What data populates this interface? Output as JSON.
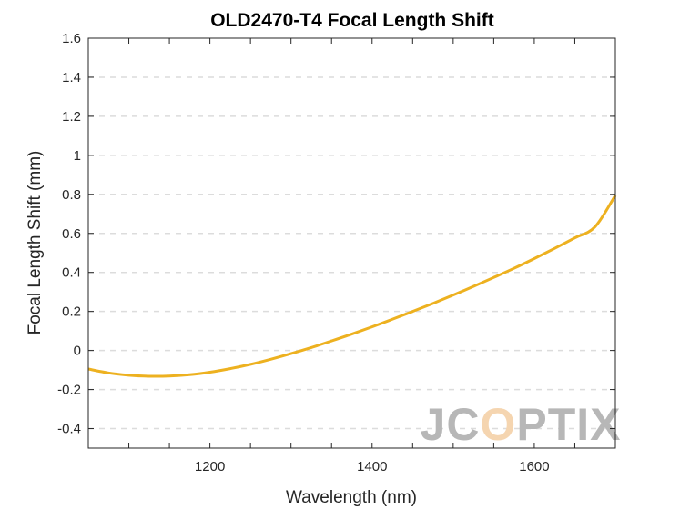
{
  "chart_data": {
    "type": "line",
    "title": "OLD2470-T4 Focal Length Shift",
    "xlabel": "Wavelength (nm)",
    "ylabel": "Focal Length Shift (mm)",
    "xlim": [
      1050,
      1700
    ],
    "ylim": [
      -0.5,
      1.6
    ],
    "xticks": [
      1200,
      1400,
      1600
    ],
    "xtick_labels": [
      "1200",
      "1400",
      "1600"
    ],
    "yticks": [
      -0.4,
      -0.2,
      0,
      0.2,
      0.4,
      0.6,
      0.8,
      1,
      1.2,
      1.4,
      1.6
    ],
    "ytick_labels": [
      "-0.4",
      "-0.2",
      "0",
      "0.2",
      "0.4",
      "0.6",
      "0.8",
      "1",
      "1.2",
      "1.4",
      "1.6"
    ],
    "grid": "horizontal-dashed",
    "line_color": "#EDB120",
    "series": [
      {
        "x": [
          1050,
          1075,
          1100,
          1125,
          1150,
          1175,
          1200,
          1225,
          1250,
          1275,
          1300,
          1325,
          1350,
          1375,
          1400,
          1425,
          1450,
          1475,
          1500,
          1525,
          1550,
          1575,
          1600,
          1625,
          1650,
          1675,
          1700
        ],
        "y": [
          -0.095,
          -0.115,
          -0.127,
          -0.132,
          -0.131,
          -0.124,
          -0.111,
          -0.093,
          -0.071,
          -0.045,
          -0.016,
          0.015,
          0.049,
          0.084,
          0.121,
          0.16,
          0.2,
          0.241,
          0.284,
          0.328,
          0.374,
          0.421,
          0.471,
          0.523,
          0.577,
          0.634,
          0.795
        ]
      }
    ]
  },
  "watermark": {
    "text": "JCOPTIX",
    "colors": [
      "#b7b7b7",
      "#f5d5b0"
    ]
  }
}
